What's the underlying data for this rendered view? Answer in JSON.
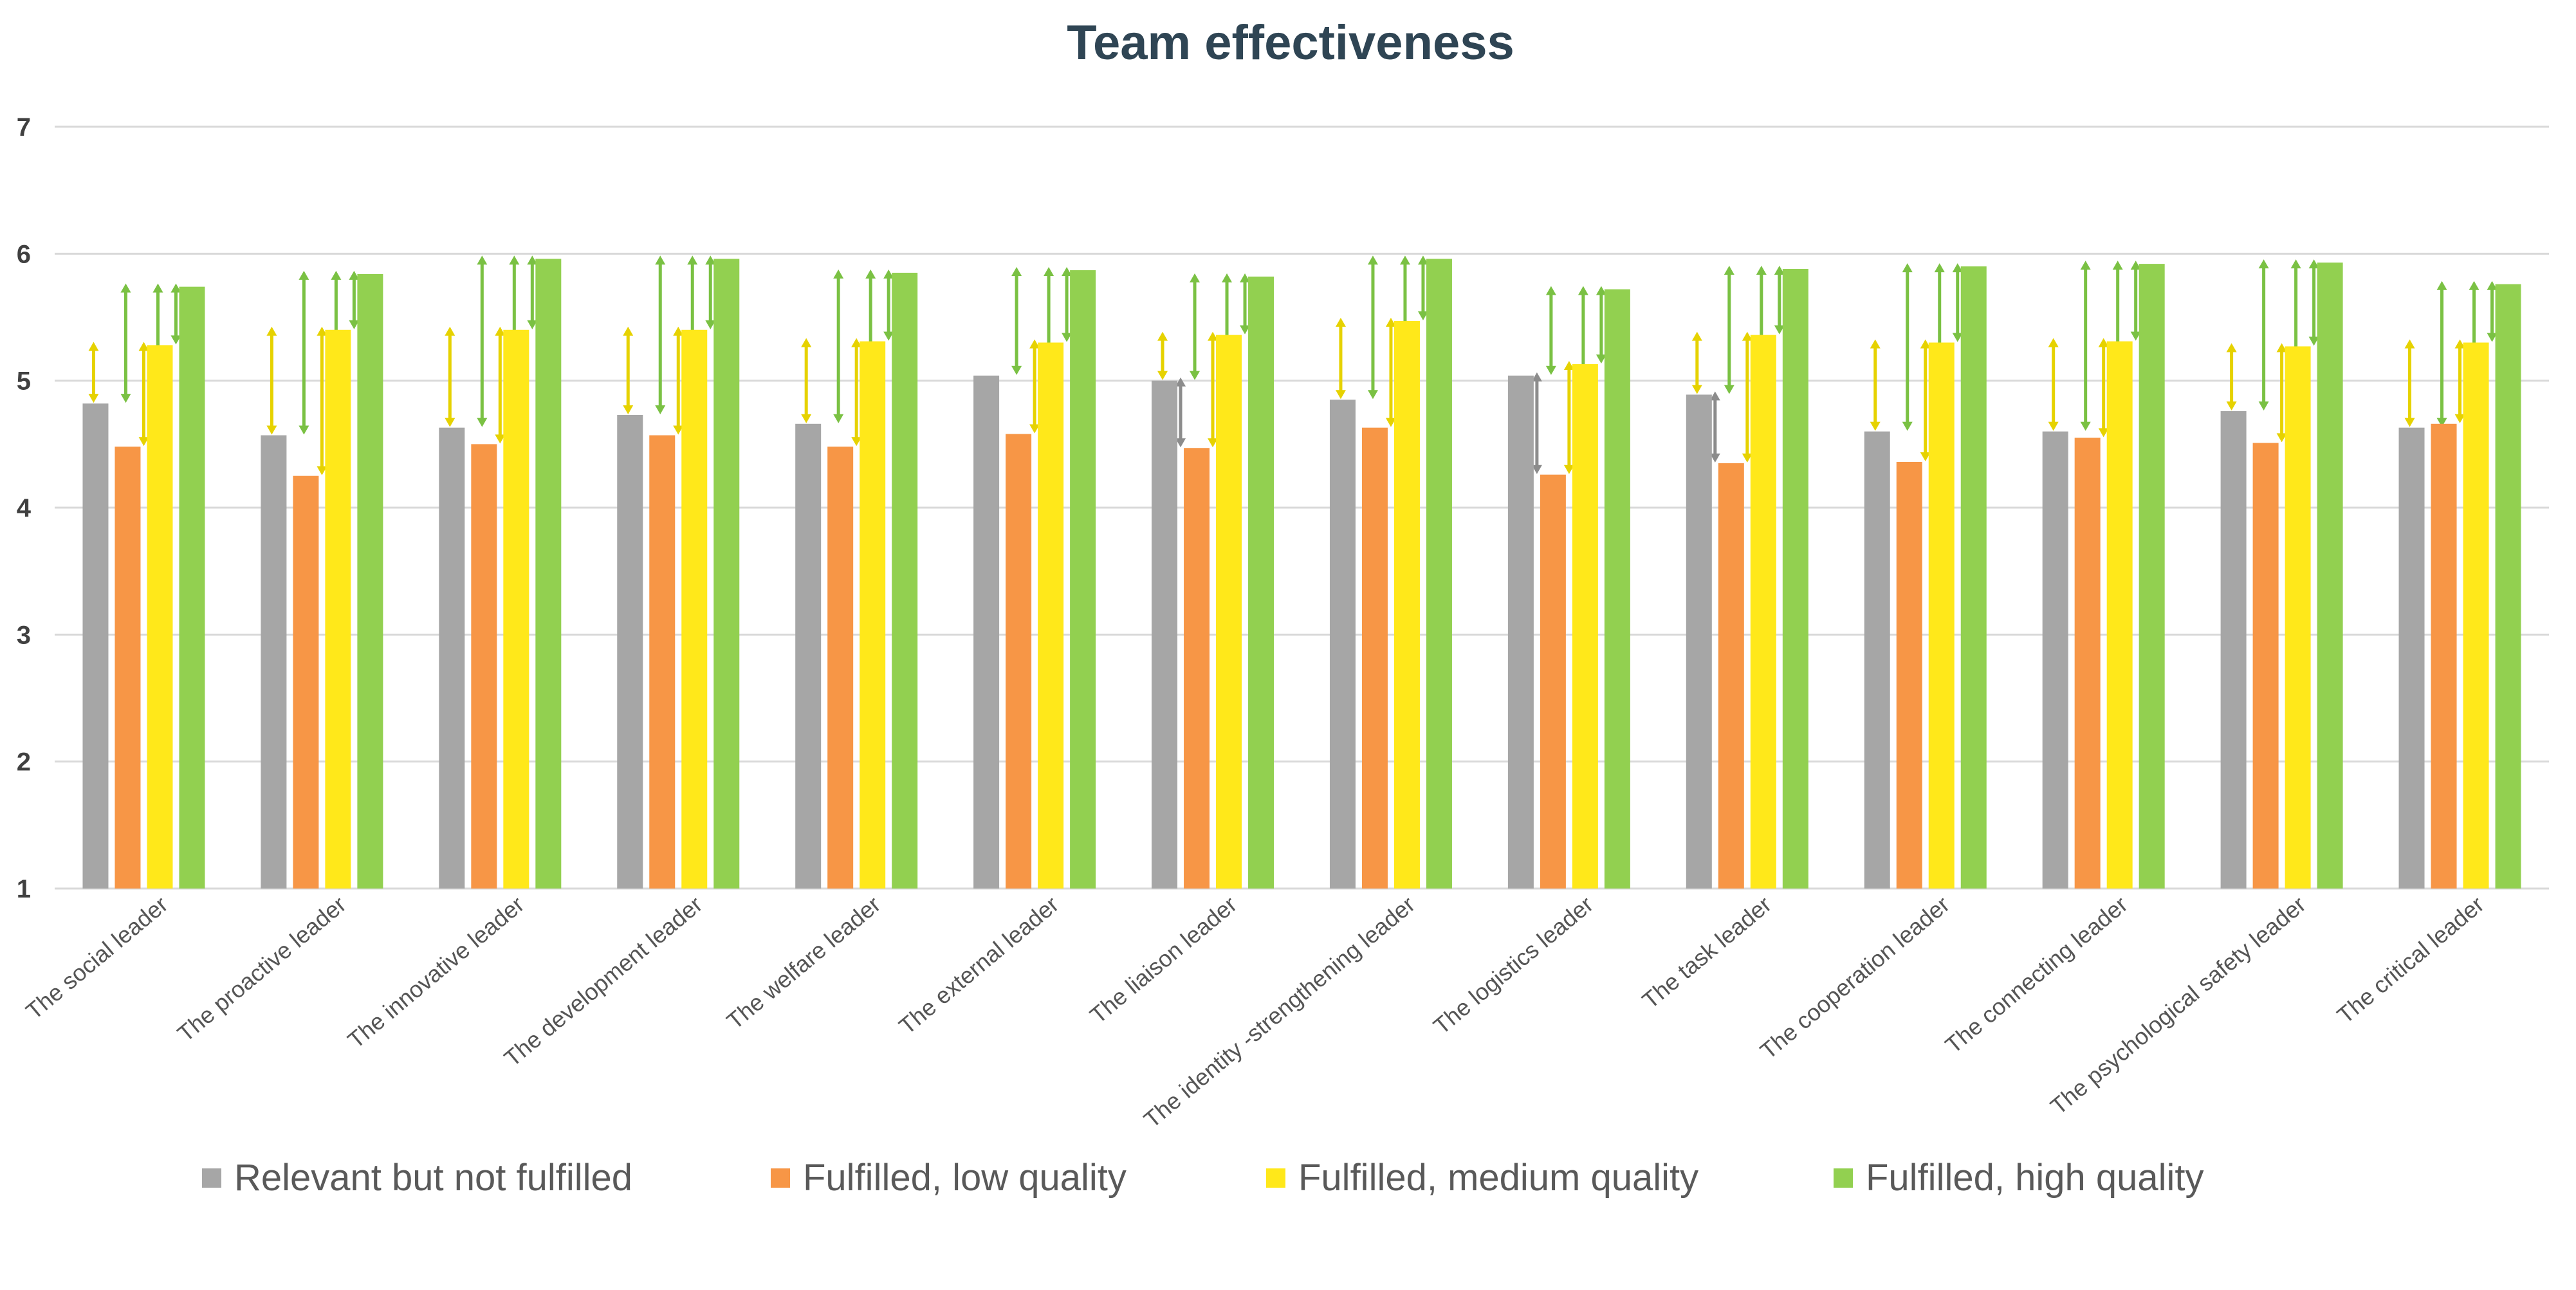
{
  "chart_data": {
    "type": "bar",
    "title": "Team effectiveness",
    "xlabel": "",
    "ylabel": "",
    "ylim": [
      1,
      7
    ],
    "yticks": [
      1,
      2,
      3,
      4,
      5,
      6,
      7
    ],
    "grid": true,
    "legend_position": "bottom",
    "categories": [
      "The social leader",
      "The proactive leader",
      "The innovative leader",
      "The development leader",
      "The welfare leader",
      "The external leader",
      "The liaison leader",
      "The identity -strengthening leader",
      "The logistics leader",
      "The task leader",
      "The cooperation leader",
      "The connecting leader",
      "The psychological safety leader",
      "The critical leader"
    ],
    "series": [
      {
        "name": "Relevant but not fulfilled",
        "color": "#a6a6a6",
        "values": [
          4.82,
          4.57,
          4.63,
          4.73,
          4.66,
          5.04,
          5.0,
          4.85,
          5.04,
          4.89,
          4.6,
          4.6,
          4.76,
          4.63
        ]
      },
      {
        "name": "Fulfilled, low quality",
        "color": "#f79646",
        "values": [
          4.48,
          4.25,
          4.5,
          4.57,
          4.48,
          4.58,
          4.47,
          4.63,
          4.26,
          4.35,
          4.36,
          4.55,
          4.51,
          4.66
        ]
      },
      {
        "name": "Fulfilled, medium quality",
        "color": "#ffe81a",
        "values": [
          5.28,
          5.4,
          5.4,
          5.4,
          5.31,
          5.3,
          5.36,
          5.47,
          5.13,
          5.36,
          5.3,
          5.31,
          5.27,
          5.3
        ]
      },
      {
        "name": "Fulfilled, high quality",
        "color": "#92d050",
        "values": [
          5.74,
          5.84,
          5.96,
          5.96,
          5.85,
          5.87,
          5.82,
          5.96,
          5.72,
          5.88,
          5.9,
          5.92,
          5.93,
          5.76
        ]
      }
    ],
    "comparison_arrows": [
      [
        {
          "from": 0,
          "to": 2,
          "color": "yellow"
        },
        {
          "from": 0,
          "to": 3,
          "color": "green"
        },
        {
          "from": 1,
          "to": 2,
          "color": "yellow"
        },
        {
          "from": 1,
          "to": 3,
          "color": "green"
        },
        {
          "from": 2,
          "to": 3,
          "color": "green"
        }
      ],
      [
        {
          "from": 0,
          "to": 2,
          "color": "yellow"
        },
        {
          "from": 0,
          "to": 3,
          "color": "green"
        },
        {
          "from": 1,
          "to": 2,
          "color": "yellow"
        },
        {
          "from": 1,
          "to": 3,
          "color": "green"
        },
        {
          "from": 2,
          "to": 3,
          "color": "green"
        }
      ],
      [
        {
          "from": 0,
          "to": 2,
          "color": "yellow"
        },
        {
          "from": 0,
          "to": 3,
          "color": "green"
        },
        {
          "from": 1,
          "to": 2,
          "color": "yellow"
        },
        {
          "from": 1,
          "to": 3,
          "color": "green"
        },
        {
          "from": 2,
          "to": 3,
          "color": "green"
        }
      ],
      [
        {
          "from": 0,
          "to": 2,
          "color": "yellow"
        },
        {
          "from": 0,
          "to": 3,
          "color": "green"
        },
        {
          "from": 1,
          "to": 2,
          "color": "yellow"
        },
        {
          "from": 1,
          "to": 3,
          "color": "green"
        },
        {
          "from": 2,
          "to": 3,
          "color": "green"
        }
      ],
      [
        {
          "from": 0,
          "to": 2,
          "color": "yellow"
        },
        {
          "from": 0,
          "to": 3,
          "color": "green"
        },
        {
          "from": 1,
          "to": 2,
          "color": "yellow"
        },
        {
          "from": 1,
          "to": 3,
          "color": "green"
        },
        {
          "from": 2,
          "to": 3,
          "color": "green"
        }
      ],
      [
        {
          "from": 0,
          "to": 3,
          "color": "green"
        },
        {
          "from": 1,
          "to": 2,
          "color": "yellow"
        },
        {
          "from": 1,
          "to": 3,
          "color": "green"
        },
        {
          "from": 2,
          "to": 3,
          "color": "green"
        }
      ],
      [
        {
          "from": 0,
          "to": 2,
          "color": "yellow"
        },
        {
          "from": 0,
          "to": 1,
          "color": "gray"
        },
        {
          "from": 0,
          "to": 3,
          "color": "green"
        },
        {
          "from": 1,
          "to": 2,
          "color": "yellow"
        },
        {
          "from": 1,
          "to": 3,
          "color": "green"
        },
        {
          "from": 2,
          "to": 3,
          "color": "green"
        }
      ],
      [
        {
          "from": 0,
          "to": 2,
          "color": "yellow"
        },
        {
          "from": 0,
          "to": 3,
          "color": "green"
        },
        {
          "from": 1,
          "to": 2,
          "color": "yellow"
        },
        {
          "from": 1,
          "to": 3,
          "color": "green"
        },
        {
          "from": 2,
          "to": 3,
          "color": "green"
        }
      ],
      [
        {
          "from": 0,
          "to": 3,
          "color": "green"
        },
        {
          "from": 0,
          "to": 1,
          "color": "gray"
        },
        {
          "from": 1,
          "to": 2,
          "color": "yellow"
        },
        {
          "from": 1,
          "to": 3,
          "color": "green"
        },
        {
          "from": 2,
          "to": 3,
          "color": "green"
        }
      ],
      [
        {
          "from": 0,
          "to": 2,
          "color": "yellow"
        },
        {
          "from": 0,
          "to": 3,
          "color": "green"
        },
        {
          "from": 0,
          "to": 1,
          "color": "gray"
        },
        {
          "from": 1,
          "to": 2,
          "color": "yellow"
        },
        {
          "from": 1,
          "to": 3,
          "color": "green"
        },
        {
          "from": 2,
          "to": 3,
          "color": "green"
        }
      ],
      [
        {
          "from": 0,
          "to": 2,
          "color": "yellow"
        },
        {
          "from": 0,
          "to": 3,
          "color": "green"
        },
        {
          "from": 1,
          "to": 2,
          "color": "yellow"
        },
        {
          "from": 1,
          "to": 3,
          "color": "green"
        },
        {
          "from": 2,
          "to": 3,
          "color": "green"
        }
      ],
      [
        {
          "from": 0,
          "to": 2,
          "color": "yellow"
        },
        {
          "from": 0,
          "to": 3,
          "color": "green"
        },
        {
          "from": 1,
          "to": 2,
          "color": "yellow"
        },
        {
          "from": 1,
          "to": 3,
          "color": "green"
        },
        {
          "from": 2,
          "to": 3,
          "color": "green"
        }
      ],
      [
        {
          "from": 0,
          "to": 2,
          "color": "yellow"
        },
        {
          "from": 0,
          "to": 3,
          "color": "green"
        },
        {
          "from": 1,
          "to": 2,
          "color": "yellow"
        },
        {
          "from": 1,
          "to": 3,
          "color": "green"
        },
        {
          "from": 2,
          "to": 3,
          "color": "green"
        }
      ],
      [
        {
          "from": 0,
          "to": 2,
          "color": "yellow"
        },
        {
          "from": 0,
          "to": 3,
          "color": "green"
        },
        {
          "from": 1,
          "to": 2,
          "color": "yellow"
        },
        {
          "from": 1,
          "to": 3,
          "color": "green"
        },
        {
          "from": 2,
          "to": 3,
          "color": "green"
        }
      ]
    ],
    "arrow_colors": {
      "yellow": "#e6d200",
      "green": "#7ac143",
      "gray": "#8c8c8c"
    },
    "gridline_color": "#d9d9d9"
  }
}
